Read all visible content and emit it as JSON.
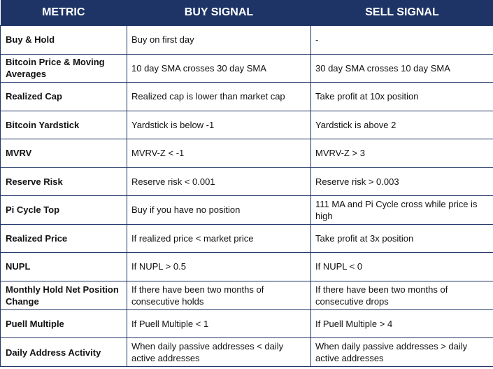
{
  "table": {
    "headers": {
      "metric": "METRIC",
      "buy": "BUY SIGNAL",
      "sell": "SELL SIGNAL"
    },
    "rows": [
      {
        "metric": "Buy & Hold",
        "buy": "Buy on first day",
        "sell": "-"
      },
      {
        "metric": "Bitcoin Price & Moving Averages",
        "buy": "10 day SMA crosses 30 day SMA",
        "sell": "30 day SMA crosses 10 day SMA"
      },
      {
        "metric": "Realized Cap",
        "buy": "Realized cap is lower than market cap",
        "sell": "Take profit at 10x position"
      },
      {
        "metric": "Bitcoin Yardstick",
        "buy": "Yardstick is below -1",
        "sell": "Yardstick is above 2"
      },
      {
        "metric": "MVRV",
        "buy": "MVRV-Z < -1",
        "sell": "MVRV-Z > 3"
      },
      {
        "metric": "Reserve Risk",
        "buy": "Reserve risk < 0.001",
        "sell": "Reserve risk > 0.003"
      },
      {
        "metric": "Pi Cycle Top",
        "buy": "Buy if you have no position",
        "sell": "111 MA and Pi Cycle cross while price is high"
      },
      {
        "metric": "Realized Price",
        "buy": "If realized price < market price",
        "sell": "Take profit at 3x position"
      },
      {
        "metric": "NUPL",
        "buy": "If NUPL > 0.5",
        "sell": "If NUPL < 0"
      },
      {
        "metric": "Monthly Hold Net Position Change",
        "buy": "If there have been two months of consecutive holds",
        "sell": "If there have been two months of consecutive drops"
      },
      {
        "metric": "Puell Multiple",
        "buy": "If Puell Multiple < 1",
        "sell": "If Puell Multiple > 4"
      },
      {
        "metric": "Daily Address Activity",
        "buy": "When daily passive addresses < daily active addresses",
        "sell": "When daily passive addresses > daily active addresses"
      }
    ]
  }
}
